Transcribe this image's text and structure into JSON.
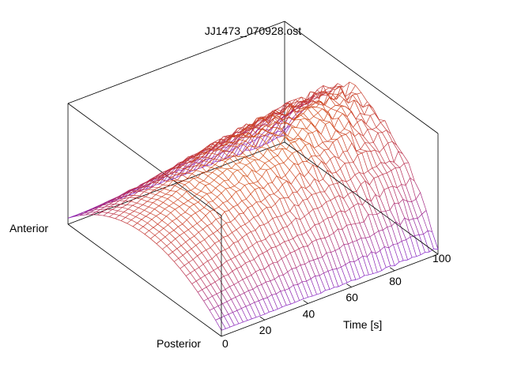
{
  "chart_data": {
    "type": "surface",
    "title": "JJ1473_070928.ost",
    "xlabel": "Time [s]",
    "ylabel_near": "Posterior",
    "ylabel_far": "Anterior",
    "zlabel": "",
    "x_ticks": [
      "0",
      "20",
      "40",
      "60",
      "80",
      "100"
    ],
    "xlim": [
      0,
      100
    ],
    "y_categories": [
      "Posterior",
      "Anterior"
    ],
    "surface": {
      "description_value": "wireframe_mesh",
      "x_resolution_s": 2,
      "cross_profile": "parabolic",
      "peak_relative_height": 1.0,
      "edge_relative_height": 0.0,
      "height_vs_time": [
        {
          "t": 0,
          "h": 0.4
        },
        {
          "t": 20,
          "h": 0.58
        },
        {
          "t": 40,
          "h": 0.74
        },
        {
          "t": 60,
          "h": 0.86
        },
        {
          "t": 80,
          "h": 0.94
        },
        {
          "t": 100,
          "h": 0.97
        }
      ],
      "noise_increases_with_time": true
    },
    "colormap": [
      "#7a1fd6",
      "#b42a5c",
      "#d0451b",
      "#e48c1c",
      "#f7e31a"
    ],
    "grid": false,
    "legend": "none"
  }
}
